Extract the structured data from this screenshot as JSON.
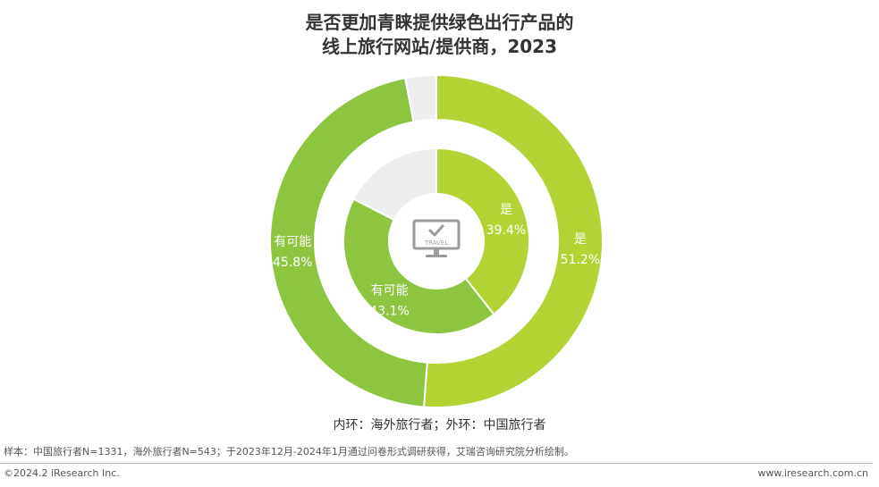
{
  "title_line1": "是否更加青睐提供绿色出行产品的",
  "title_line2": "线上旅行网站/提供商，2023",
  "center_icon": {
    "name": "travel-monitor-icon",
    "label": "TRAVEL"
  },
  "caption": "内环：海外旅行者；外环：中国旅行者",
  "source": "样本：中国旅行者N=1331，海外旅行者N=543；于2023年12月-2024年1月通过问卷形式调研获得，艾瑞咨询研究院分析绘制。",
  "copyright": "©2024.2 iResearch Inc.",
  "website": "www.iresearch.com.cn",
  "colors": {
    "yes": "#b3d334",
    "maybe": "#8dc440",
    "no": "#eeeeee",
    "label": "#ffffff",
    "icon": "#9b9b9b"
  },
  "chart_data": {
    "type": "pie",
    "title": "是否更加青睐提供绿色出行产品的线上旅行网站/提供商，2023",
    "categories": [
      "是",
      "有可能",
      ""
    ],
    "series": [
      {
        "name": "内环：海外旅行者",
        "ring": "inner",
        "values": [
          39.4,
          43.1,
          17.5
        ],
        "labels": [
          "39.4%",
          "43.1%",
          ""
        ]
      },
      {
        "name": "外环：中国旅行者",
        "ring": "outer",
        "values": [
          51.2,
          45.8,
          3.0
        ],
        "labels": [
          "51.2%",
          "45.8%",
          ""
        ]
      }
    ]
  }
}
